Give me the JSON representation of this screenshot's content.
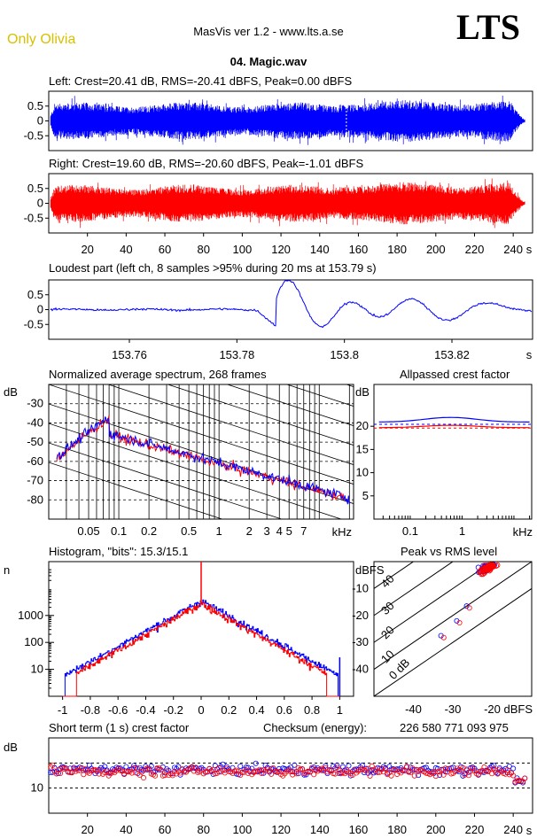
{
  "header": {
    "artist": "Only Olivia",
    "app_title": "MasVis ver 1.2 - www.lts.a.se",
    "logo": "LTS",
    "file_title": "04. Magic.wav"
  },
  "colors": {
    "left": "#0000ff",
    "right": "#ff0000",
    "grid": "#000000"
  },
  "chart_data": [
    {
      "type": "line",
      "id": "left-waveform",
      "title": "Left: Crest=20.41 dB, RMS=-20.41 dBFS, Peak=0.00 dBFS",
      "ylim": [
        -1,
        1
      ],
      "yticks": [
        "0.5",
        "0",
        "-0.5"
      ],
      "xlim": [
        0,
        250
      ]
    },
    {
      "type": "line",
      "id": "right-waveform",
      "title": "Right: Crest=19.60 dB, RMS=-20.60 dBFS, Peak=-1.01 dBFS",
      "ylim": [
        -1,
        1
      ],
      "yticks": [
        "0.5",
        "0",
        "-0.5"
      ],
      "xticks": [
        "20",
        "40",
        "60",
        "80",
        "100",
        "120",
        "140",
        "160",
        "180",
        "200",
        "220",
        "240"
      ],
      "xunit": "s",
      "xlim": [
        0,
        250
      ]
    },
    {
      "type": "line",
      "id": "loudest-part",
      "title": "Loudest part (left  ch, 8 samples >95% during 20 ms at 153.79 s)",
      "yticks": [
        "0.5",
        "0",
        "-0.5"
      ],
      "xticks": [
        "153.76",
        "153.78",
        "153.8",
        "153.82"
      ],
      "xunit": "s",
      "xlim": [
        153.745,
        153.835
      ],
      "ylim": [
        -1,
        1
      ]
    },
    {
      "type": "line",
      "id": "avg-spectrum",
      "title": "Normalized average spectrum, 268 frames",
      "ylabel": "dB",
      "yticks": [
        "-30",
        "-40",
        "-50",
        "-60",
        "-70",
        "-80"
      ],
      "xticks": [
        "0.05",
        "0.1",
        "0.2",
        "0.5",
        "1",
        "2",
        "3",
        "4",
        "5",
        "7"
      ],
      "xunit": "kHz",
      "xscale": "log",
      "ylim": [
        -90,
        -20
      ],
      "xlim": [
        0.02,
        22
      ]
    },
    {
      "type": "line",
      "id": "allpassed-crest",
      "title": "Allpassed crest factor",
      "ylabel": "dB",
      "yticks": [
        "20",
        "15",
        "10",
        "5"
      ],
      "xticks": [
        "0.1",
        "1"
      ],
      "xunit": "kHz",
      "xscale": "log",
      "ylim": [
        0,
        29
      ],
      "xlim": [
        0.02,
        22
      ]
    },
    {
      "type": "line",
      "id": "histogram",
      "title": "Histogram, \"bits\": 15.3/15.1",
      "ylabel": "n",
      "yticks": [
        "1000",
        "100",
        "10"
      ],
      "xticks": [
        "-1",
        "-0.8",
        "-0.6",
        "-0.4",
        "-0.2",
        "0",
        "0.2",
        "0.4",
        "0.6",
        "0.8",
        "1"
      ],
      "yscale": "log",
      "xlim": [
        -1.1,
        1.1
      ],
      "ylim": [
        1,
        100000
      ]
    },
    {
      "type": "scatter",
      "id": "peak-vs-rms",
      "title": "Peak vs RMS level",
      "ylabel": "dBFS",
      "xunit": "dBFS",
      "yticks": [
        "-10",
        "-20",
        "-30",
        "-40"
      ],
      "xticks": [
        "-40",
        "-30",
        "-20"
      ],
      "crest_lines": [
        "40",
        "30",
        "20",
        "10",
        "0 dB"
      ],
      "xlim": [
        -50,
        -10
      ],
      "ylim": [
        -50,
        0
      ]
    },
    {
      "type": "scatter",
      "id": "short-term-crest",
      "title": "Short term (1 s) crest factor",
      "checksum_label": "Checksum (energy):",
      "checksum_value": "226 580 771 093 975",
      "ylabel": "dB",
      "yticks": [
        "10"
      ],
      "xticks": [
        "20",
        "40",
        "60",
        "80",
        "100",
        "120",
        "140",
        "160",
        "180",
        "200",
        "220",
        "240"
      ],
      "xunit": "s",
      "xlim": [
        0,
        250
      ],
      "ylim": [
        0,
        30
      ]
    }
  ]
}
